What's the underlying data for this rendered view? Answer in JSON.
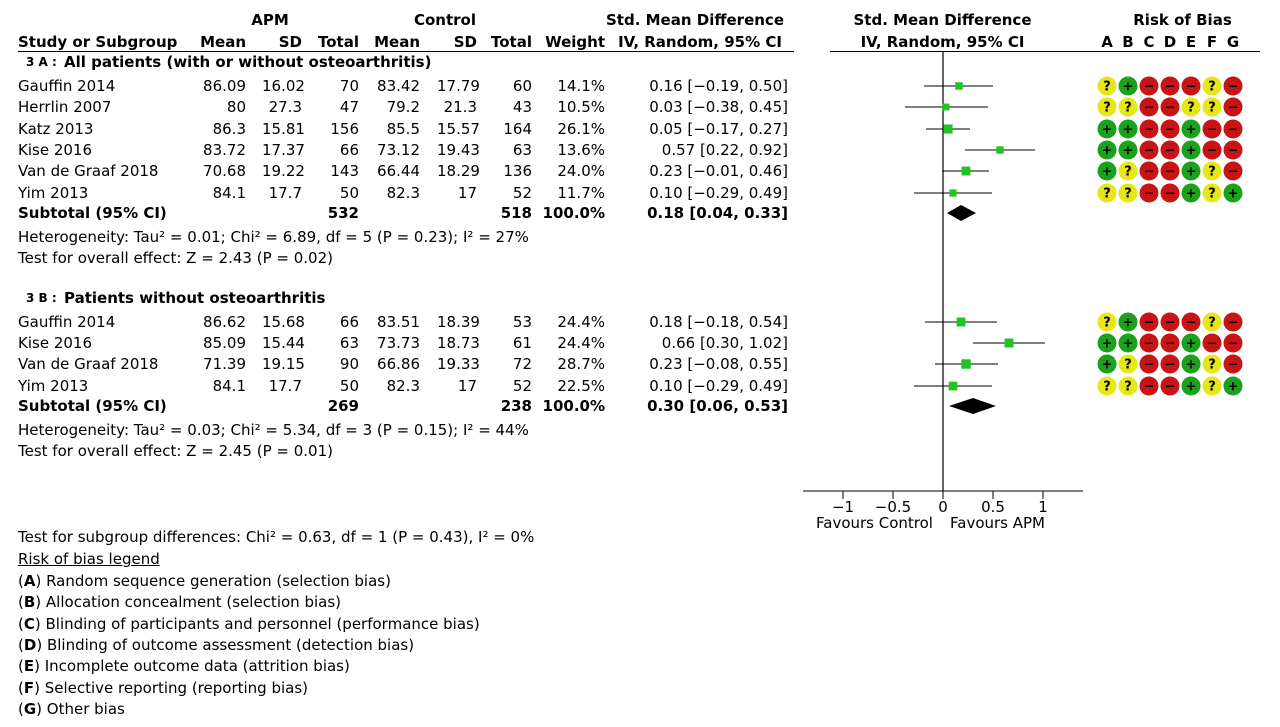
{
  "headers": {
    "group_apm": "APM",
    "group_control": "Control",
    "smd_title": "Std. Mean Difference",
    "smd_method": "IV, Random, 95% CI",
    "plot_title": "Std. Mean Difference",
    "plot_method": "IV, Random, 95% CI",
    "rob_title": "Risk of Bias",
    "col_study": "Study or Subgroup",
    "col_mean": "Mean",
    "col_sd": "SD",
    "col_total": "Total",
    "col_weight": "Weight",
    "rob_letters": [
      "A",
      "B",
      "C",
      "D",
      "E",
      "F",
      "G"
    ]
  },
  "subgroups": [
    {
      "title_prefix": "3 A :",
      "title": "All patients (with or without osteoarthritis)",
      "studies": [
        {
          "name": "Gauffin 2014",
          "apm_mean": "86.09",
          "apm_sd": "16.02",
          "apm_total": "70",
          "ctl_mean": "83.42",
          "ctl_sd": "17.79",
          "ctl_total": "60",
          "weight": "14.1%",
          "ci": "0.16 [−0.19, 0.50]",
          "rob": [
            "?",
            "+",
            "−",
            "−",
            "−",
            "?",
            "−"
          ]
        },
        {
          "name": "Herrlin 2007",
          "apm_mean": "80",
          "apm_sd": "27.3",
          "apm_total": "47",
          "ctl_mean": "79.2",
          "ctl_sd": "21.3",
          "ctl_total": "43",
          "weight": "10.5%",
          "ci": "0.03 [−0.38, 0.45]",
          "rob": [
            "?",
            "?",
            "−",
            "−",
            "?",
            "?",
            "−"
          ]
        },
        {
          "name": "Katz 2013",
          "apm_mean": "86.3",
          "apm_sd": "15.81",
          "apm_total": "156",
          "ctl_mean": "85.5",
          "ctl_sd": "15.57",
          "ctl_total": "164",
          "weight": "26.1%",
          "ci": "0.05 [−0.17, 0.27]",
          "rob": [
            "+",
            "+",
            "−",
            "−",
            "+",
            "−",
            "−"
          ]
        },
        {
          "name": "Kise 2016",
          "apm_mean": "83.72",
          "apm_sd": "17.37",
          "apm_total": "66",
          "ctl_mean": "73.12",
          "ctl_sd": "19.43",
          "ctl_total": "63",
          "weight": "13.6%",
          "ci": "0.57 [0.22, 0.92]",
          "rob": [
            "+",
            "+",
            "−",
            "−",
            "+",
            "−",
            "−"
          ]
        },
        {
          "name": "Van de Graaf 2018",
          "apm_mean": "70.68",
          "apm_sd": "19.22",
          "apm_total": "143",
          "ctl_mean": "66.44",
          "ctl_sd": "18.29",
          "ctl_total": "136",
          "weight": "24.0%",
          "ci": "0.23 [−0.01, 0.46]",
          "rob": [
            "+",
            "?",
            "−",
            "−",
            "+",
            "?",
            "−"
          ]
        },
        {
          "name": "Yim 2013",
          "apm_mean": "84.1",
          "apm_sd": "17.7",
          "apm_total": "50",
          "ctl_mean": "82.3",
          "ctl_sd": "17",
          "ctl_total": "52",
          "weight": "11.7%",
          "ci": "0.10 [−0.29, 0.49]",
          "rob": [
            "?",
            "?",
            "−",
            "−",
            "+",
            "?",
            "+"
          ]
        }
      ],
      "subtotal": {
        "label": "Subtotal (95% CI)",
        "apm_total": "532",
        "ctl_total": "518",
        "weight": "100.0%",
        "ci": "0.18 [0.04, 0.33]"
      },
      "heterogeneity": "Heterogeneity: Tau² = 0.01; Chi² = 6.89, df = 5 (P = 0.23); I² = 27%",
      "overall": "Test for overall effect: Z = 2.43 (P = 0.02)"
    },
    {
      "title_prefix": "3 B :",
      "title": "Patients without osteoarthritis",
      "studies": [
        {
          "name": "Gauffin 2014",
          "apm_mean": "86.62",
          "apm_sd": "15.68",
          "apm_total": "66",
          "ctl_mean": "83.51",
          "ctl_sd": "18.39",
          "ctl_total": "53",
          "weight": "24.4%",
          "ci": "0.18 [−0.18, 0.54]",
          "rob": [
            "?",
            "+",
            "−",
            "−",
            "−",
            "?",
            "−"
          ]
        },
        {
          "name": "Kise 2016",
          "apm_mean": "85.09",
          "apm_sd": "15.44",
          "apm_total": "63",
          "ctl_mean": "73.73",
          "ctl_sd": "18.73",
          "ctl_total": "61",
          "weight": "24.4%",
          "ci": "0.66 [0.30, 1.02]",
          "rob": [
            "+",
            "+",
            "−",
            "−",
            "+",
            "−",
            "−"
          ]
        },
        {
          "name": "Van de Graaf 2018",
          "apm_mean": "71.39",
          "apm_sd": "19.15",
          "apm_total": "90",
          "ctl_mean": "66.86",
          "ctl_sd": "19.33",
          "ctl_total": "72",
          "weight": "28.7%",
          "ci": "0.23 [−0.08, 0.55]",
          "rob": [
            "+",
            "?",
            "−",
            "−",
            "+",
            "?",
            "−"
          ]
        },
        {
          "name": "Yim 2013",
          "apm_mean": "84.1",
          "apm_sd": "17.7",
          "apm_total": "50",
          "ctl_mean": "82.3",
          "ctl_sd": "17",
          "ctl_total": "52",
          "weight": "22.5%",
          "ci": "0.10 [−0.29, 0.49]",
          "rob": [
            "?",
            "?",
            "−",
            "−",
            "+",
            "?",
            "+"
          ]
        }
      ],
      "subtotal": {
        "label": "Subtotal (95% CI)",
        "apm_total": "269",
        "ctl_total": "238",
        "weight": "100.0%",
        "ci": "0.30 [0.06, 0.53]"
      },
      "heterogeneity": "Heterogeneity: Tau² = 0.03; Chi² = 5.34, df = 3 (P = 0.15); I² = 44%",
      "overall": "Test for overall effect: Z = 2.45 (P = 0.01)"
    }
  ],
  "subgroup_test": "Test for subgroup differences: Chi² = 0.63, df = 1 (P = 0.43), I² = 0%",
  "legend": {
    "title": "Risk of bias legend",
    "items": [
      {
        "letter": "A",
        "text": "Random sequence generation (selection bias)"
      },
      {
        "letter": "B",
        "text": "Allocation concealment (selection bias)"
      },
      {
        "letter": "C",
        "text": "Blinding of participants and personnel (performance bias)"
      },
      {
        "letter": "D",
        "text": "Blinding of outcome assessment (detection bias)"
      },
      {
        "letter": "E",
        "text": "Incomplete outcome data (attrition bias)"
      },
      {
        "letter": "F",
        "text": "Selective reporting (reporting bias)"
      },
      {
        "letter": "G",
        "text": "Other bias"
      }
    ]
  },
  "colors": {
    "low": "#1aa31a",
    "unclear": "#e6e619",
    "high": "#c81414",
    "marker": "#22c422",
    "diamond": "#000000"
  },
  "chart_data": {
    "type": "forest",
    "x_axis": {
      "ticks": [
        -1,
        -0.5,
        0,
        0.5,
        1
      ],
      "tick_labels": [
        "−1",
        "−0.5",
        "0",
        "0.5",
        "1"
      ],
      "xlim": [
        -1.4,
        1.4
      ],
      "left_label": "Favours Control",
      "right_label": "Favours APM"
    },
    "subgroups": [
      {
        "name": "3 A",
        "studies": [
          {
            "study": "Gauffin 2014",
            "est": 0.16,
            "lo": -0.19,
            "hi": 0.5,
            "weight": 14.1
          },
          {
            "study": "Herrlin 2007",
            "est": 0.03,
            "lo": -0.38,
            "hi": 0.45,
            "weight": 10.5
          },
          {
            "study": "Katz 2013",
            "est": 0.05,
            "lo": -0.17,
            "hi": 0.27,
            "weight": 26.1
          },
          {
            "study": "Kise 2016",
            "est": 0.57,
            "lo": 0.22,
            "hi": 0.92,
            "weight": 13.6
          },
          {
            "study": "Van de Graaf 2018",
            "est": 0.23,
            "lo": -0.01,
            "hi": 0.46,
            "weight": 24.0
          },
          {
            "study": "Yim 2013",
            "est": 0.1,
            "lo": -0.29,
            "hi": 0.49,
            "weight": 11.7
          }
        ],
        "pooled": {
          "est": 0.18,
          "lo": 0.04,
          "hi": 0.33
        }
      },
      {
        "name": "3 B",
        "studies": [
          {
            "study": "Gauffin 2014",
            "est": 0.18,
            "lo": -0.18,
            "hi": 0.54,
            "weight": 24.4
          },
          {
            "study": "Kise 2016",
            "est": 0.66,
            "lo": 0.3,
            "hi": 1.02,
            "weight": 24.4
          },
          {
            "study": "Van de Graaf 2018",
            "est": 0.23,
            "lo": -0.08,
            "hi": 0.55,
            "weight": 28.7
          },
          {
            "study": "Yim 2013",
            "est": 0.1,
            "lo": -0.29,
            "hi": 0.49,
            "weight": 22.5
          }
        ],
        "pooled": {
          "est": 0.3,
          "lo": 0.06,
          "hi": 0.53
        }
      }
    ]
  }
}
